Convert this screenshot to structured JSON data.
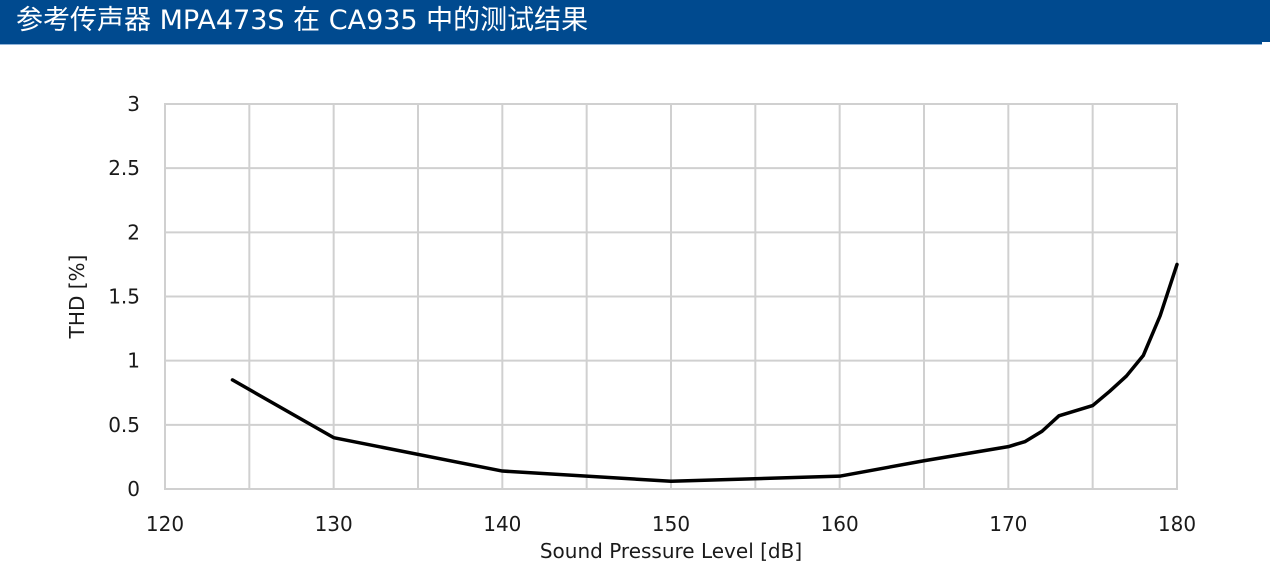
{
  "header": {
    "title": "参考传声器 MPA473S 在 CA935 中的测试结果",
    "bg_color": "#004a8f"
  },
  "chart_data": {
    "type": "line",
    "xlabel": "Sound Pressure Level [dB]",
    "ylabel": "THD [%]",
    "xlim": [
      120,
      180
    ],
    "ylim": [
      0,
      3
    ],
    "xticks": [
      120,
      130,
      140,
      150,
      160,
      170,
      180
    ],
    "yticks": [
      0,
      0.5,
      1,
      1.5,
      2,
      2.5,
      3
    ],
    "ytick_labels": [
      "0",
      "0.5",
      "1",
      "1.5",
      "2",
      "2.5",
      "3"
    ],
    "x_grid_step": 5,
    "grid": true,
    "line_color": "#000000",
    "series": [
      {
        "x": [
          124,
          130,
          140,
          150,
          160,
          165,
          170,
          171,
          172,
          173,
          175,
          176,
          177,
          178,
          179,
          180
        ],
        "y": [
          0.85,
          0.4,
          0.14,
          0.06,
          0.1,
          0.22,
          0.33,
          0.37,
          0.45,
          0.57,
          0.65,
          0.76,
          0.88,
          1.04,
          1.35,
          1.75
        ]
      }
    ]
  }
}
